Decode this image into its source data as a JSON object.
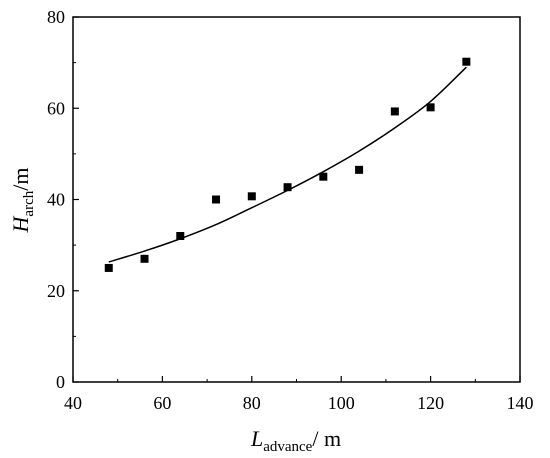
{
  "chart_data": {
    "type": "scatter",
    "x": [
      48,
      56,
      64,
      72,
      80,
      88,
      96,
      104,
      112,
      120,
      128
    ],
    "y": [
      25.0,
      27.0,
      32.0,
      40.0,
      40.7,
      42.7,
      45.0,
      46.5,
      59.3,
      60.2,
      70.2
    ],
    "fit": {
      "x": [
        48,
        56,
        64,
        72,
        80,
        88,
        96,
        104,
        112,
        120,
        128
      ],
      "y": [
        26.3,
        28.7,
        31.4,
        34.5,
        38.2,
        42.0,
        46.1,
        50.6,
        55.7,
        61.5,
        69.0
      ]
    },
    "xlim": [
      40,
      140
    ],
    "ylim": [
      0,
      80
    ],
    "xticks": [
      "40",
      "60",
      "80",
      "100",
      "120",
      "140"
    ],
    "yticks": [
      "0",
      "20",
      "40",
      "60",
      "80"
    ],
    "xlabel": {
      "main": "L",
      "sub": "advance",
      "unit": "/ m"
    },
    "ylabel": {
      "main": "H",
      "sub": "arch",
      "unit": "/m"
    },
    "colors": {
      "marker": "#000000",
      "line": "#000000",
      "axis": "#000000"
    }
  }
}
